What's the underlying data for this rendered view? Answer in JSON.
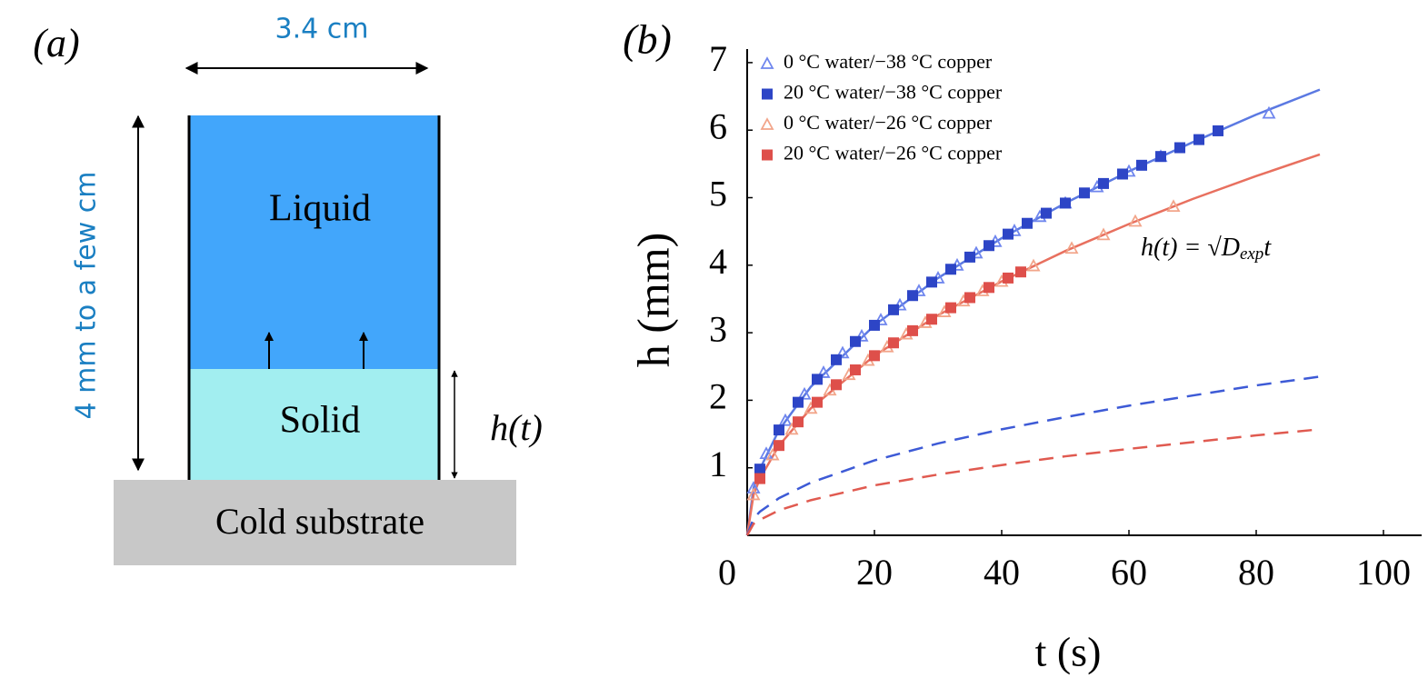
{
  "diagram": {
    "panel_label": "(a)",
    "width_label": "3.4 cm",
    "height_label": "4 mm to a few cm",
    "liquid": "Liquid",
    "solid": "Solid",
    "h_label": "h(t)",
    "substrate": "Cold substrate"
  },
  "chart_data": {
    "type": "scatter",
    "panel_label": "(b)",
    "x_label": "t (s)",
    "y_label": "h (mm)",
    "annotation": [
      "h(t) = √",
      "D",
      "exp",
      "t"
    ],
    "xlim": [
      0,
      106
    ],
    "ylim": [
      0,
      7.2
    ],
    "xticks": [
      0,
      20,
      40,
      60,
      80,
      100
    ],
    "yticks": [
      1,
      2,
      3,
      4,
      5,
      6,
      7
    ],
    "legend": "upper left",
    "series": [
      {
        "name": "0 °C water/−38 °C copper",
        "color": "#6f86ee",
        "marker": "triangle",
        "x": [
          1,
          3,
          6,
          9,
          12,
          15,
          18,
          21,
          24,
          27,
          30,
          33,
          36,
          39,
          42,
          46,
          50,
          55,
          60,
          65,
          82
        ],
        "values": [
          0.7,
          1.21,
          1.7,
          2.09,
          2.41,
          2.7,
          2.95,
          3.19,
          3.41,
          3.62,
          3.81,
          4.0,
          4.18,
          4.35,
          4.51,
          4.72,
          4.92,
          5.16,
          5.39,
          5.61,
          6.25
        ]
      },
      {
        "name": "20 °C water/−38 °C copper",
        "color": "#2d45c6",
        "marker": "square",
        "x": [
          2,
          5,
          8,
          11,
          14,
          17,
          20,
          23,
          26,
          29,
          32,
          35,
          38,
          41,
          44,
          47,
          50,
          53,
          56,
          59,
          62,
          65,
          68,
          71,
          74
        ],
        "values": [
          0.98,
          1.56,
          1.97,
          2.31,
          2.6,
          2.87,
          3.11,
          3.34,
          3.55,
          3.75,
          3.94,
          4.12,
          4.29,
          4.46,
          4.62,
          4.77,
          4.92,
          5.07,
          5.21,
          5.35,
          5.48,
          5.61,
          5.74,
          5.86,
          5.99
        ]
      },
      {
        "name": "0 °C water/−26 °C copper",
        "color": "#f2a58a",
        "marker": "triangle",
        "x": [
          1,
          4,
          7,
          10,
          13,
          16,
          19,
          22,
          25,
          28,
          31,
          34,
          37,
          40,
          45,
          51,
          56,
          61,
          67
        ],
        "values": [
          0.6,
          1.19,
          1.57,
          1.88,
          2.15,
          2.38,
          2.59,
          2.79,
          2.98,
          3.15,
          3.31,
          3.47,
          3.62,
          3.76,
          3.99,
          4.25,
          4.45,
          4.65,
          4.87
        ]
      },
      {
        "name": "20 °C water/−26 °C copper",
        "color": "#de4f4a",
        "marker": "square",
        "x": [
          2,
          5,
          8,
          11,
          14,
          17,
          20,
          23,
          26,
          29,
          32,
          35,
          38,
          41,
          43
        ],
        "values": [
          0.84,
          1.33,
          1.68,
          1.97,
          2.23,
          2.45,
          2.66,
          2.85,
          3.03,
          3.2,
          3.37,
          3.52,
          3.67,
          3.81,
          3.9
        ]
      }
    ],
    "curves": [
      {
        "color": "#5b79e2",
        "dashed": false,
        "x": [
          0,
          1,
          2,
          5,
          10,
          20,
          30,
          40,
          50,
          60,
          70,
          80,
          90
        ],
        "values": [
          0,
          0.7,
          0.98,
          1.56,
          2.2,
          3.11,
          3.81,
          4.4,
          4.92,
          5.39,
          5.82,
          6.23,
          6.6
        ]
      },
      {
        "color": "#e8705f",
        "dashed": false,
        "x": [
          0,
          1,
          2,
          5,
          10,
          20,
          30,
          40,
          50,
          60,
          70,
          80,
          90
        ],
        "values": [
          0,
          0.6,
          0.84,
          1.33,
          1.88,
          2.66,
          3.26,
          3.76,
          4.21,
          4.61,
          4.98,
          5.32,
          5.64
        ]
      },
      {
        "color": "#3d5ad6",
        "dashed": true,
        "x": [
          0,
          1,
          2,
          5,
          10,
          20,
          30,
          40,
          50,
          60,
          70,
          80,
          90
        ],
        "values": [
          0,
          0.25,
          0.35,
          0.55,
          0.78,
          1.11,
          1.36,
          1.57,
          1.75,
          1.92,
          2.07,
          2.22,
          2.35
        ]
      },
      {
        "color": "#e05a50",
        "dashed": true,
        "x": [
          0,
          1,
          2,
          5,
          10,
          20,
          30,
          40,
          50,
          60,
          70,
          80,
          90
        ],
        "values": [
          0,
          0.17,
          0.23,
          0.37,
          0.52,
          0.74,
          0.9,
          1.04,
          1.17,
          1.28,
          1.38,
          1.48,
          1.57
        ]
      }
    ]
  }
}
